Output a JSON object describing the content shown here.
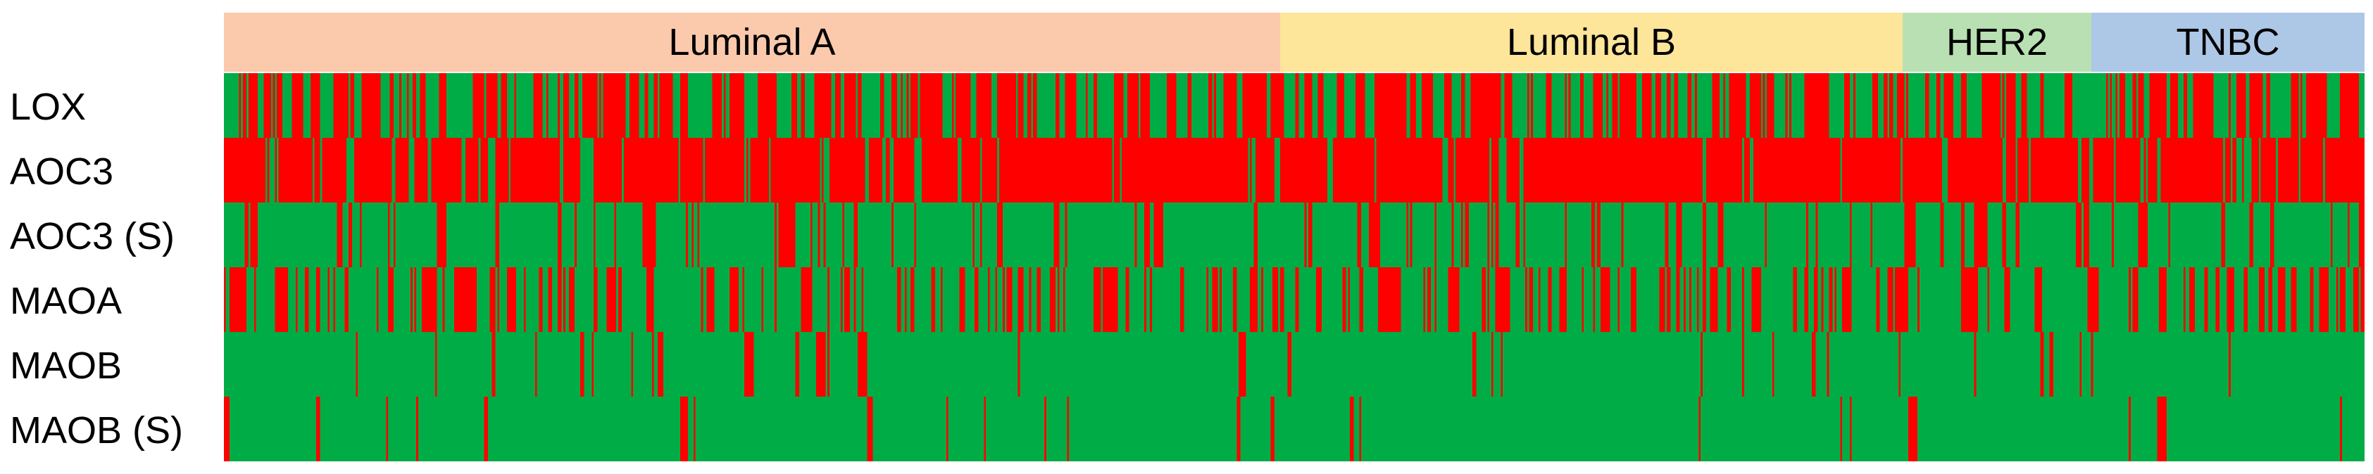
{
  "chart_data": {
    "type": "heatmap",
    "subtypes": [
      {
        "name": "Luminal A",
        "color": "#fbc9ab",
        "samples": 560
      },
      {
        "name": "Luminal B",
        "color": "#fde59a",
        "samples": 330
      },
      {
        "name": "HER2",
        "color": "#b9e0b2",
        "samples": 100
      },
      {
        "name": "TNBC",
        "color": "#adc7e6",
        "samples": 145
      }
    ],
    "rows": [
      {
        "gene": "LOX",
        "high_fraction": 0.38
      },
      {
        "gene": "AOC3",
        "high_fraction": 0.72
      },
      {
        "gene": "AOC3 (S)",
        "high_fraction": 0.2
      },
      {
        "gene": "MAOA",
        "high_fraction": 0.28
      },
      {
        "gene": "MAOB",
        "high_fraction": 0.1
      },
      {
        "gene": "MAOB (S)",
        "high_fraction": 0.12
      }
    ],
    "value_colors": {
      "high": "#ff0000",
      "low": "#00ac45"
    }
  }
}
